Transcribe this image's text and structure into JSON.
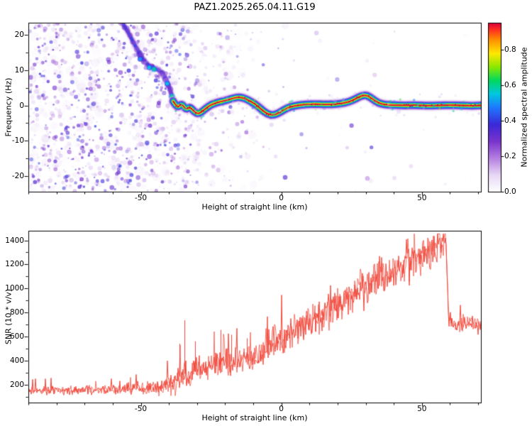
{
  "figure": {
    "background": "#ffffff",
    "frame_color": "#000000",
    "title": "PAZ1.2025.265.04.11.G19"
  },
  "chart_data": [
    {
      "type": "heatmap",
      "title": "PAZ1.2025.265.04.11.G19",
      "xlabel": "Height of straight line (km)",
      "ylabel": "Frequency (Hz)",
      "xlim": [
        -90,
        71
      ],
      "ylim": [
        -24.5,
        23.5
      ],
      "xticks": [
        {
          "v": -50,
          "label": "-50"
        },
        {
          "v": 0,
          "label": "0"
        },
        {
          "v": 50,
          "label": "50"
        }
      ],
      "x_minor_step": 10,
      "yticks": [
        {
          "v": 20,
          "label": "20"
        },
        {
          "v": 10,
          "label": "10"
        },
        {
          "v": 0,
          "label": "0"
        },
        {
          "v": -10,
          "label": "-10"
        },
        {
          "v": -20,
          "label": "-20"
        }
      ],
      "y_minor_step": 5,
      "colorbar": {
        "label": "Normalized spectral amplitude",
        "range": [
          0,
          0.95
        ],
        "ticks": [
          {
            "v": 0,
            "label": "0.0"
          },
          {
            "v": 0.2,
            "label": "0.2"
          },
          {
            "v": 0.4,
            "label": "0.4"
          },
          {
            "v": 0.6,
            "label": "0.6"
          },
          {
            "v": 0.8,
            "label": "0.8"
          }
        ],
        "colormap": [
          {
            "t": 0.0,
            "color": "#ffffff"
          },
          {
            "t": 0.1,
            "color": "#e8d8f5"
          },
          {
            "t": 0.2,
            "color": "#b57fe0"
          },
          {
            "t": 0.3,
            "color": "#7a33cc"
          },
          {
            "t": 0.4,
            "color": "#3b28d8"
          },
          {
            "t": 0.5,
            "color": "#1f78ff"
          },
          {
            "t": 0.58,
            "color": "#00c8e0"
          },
          {
            "t": 0.66,
            "color": "#00d860"
          },
          {
            "t": 0.74,
            "color": "#8ae800"
          },
          {
            "t": 0.82,
            "color": "#ffe800"
          },
          {
            "t": 0.9,
            "color": "#ff9000"
          },
          {
            "t": 0.96,
            "color": "#ff3020"
          },
          {
            "t": 1.0,
            "color": "#d8003c"
          }
        ]
      },
      "signal_ridge": {
        "core_amplitude": 0.95,
        "x": [
          -38.5,
          -37,
          -35.5,
          -34,
          -32.5,
          -31,
          -29.5,
          -28,
          -26.5,
          -25,
          -23,
          -21,
          -19,
          -17,
          -15,
          -13,
          -11,
          -9,
          -7,
          -5,
          -3,
          -1,
          1,
          3,
          6,
          9,
          12,
          15,
          18,
          21,
          24,
          26.5,
          28.5,
          30.5,
          32.5,
          34.5,
          37,
          40,
          44,
          48,
          52,
          56,
          60,
          64,
          68,
          71
        ],
        "frequency_hz": [
          1.2,
          -0.8,
          0.6,
          -1.2,
          -0.4,
          -1.8,
          -2.4,
          -1.6,
          -0.6,
          0.2,
          0.8,
          1.2,
          1.6,
          2.1,
          2.4,
          2.0,
          1.2,
          0.2,
          -1.2,
          -2.4,
          -2.8,
          -2.2,
          -1.2,
          -0.4,
          0.1,
          0.3,
          0.4,
          0.3,
          0.3,
          0.5,
          1.0,
          1.9,
          2.8,
          2.9,
          1.8,
          0.7,
          0.2,
          0.1,
          0.0,
          0.1,
          -0.1,
          0.0,
          0.1,
          0.0,
          -0.1,
          0.0
        ]
      },
      "descent_track": {
        "amplitude": 0.4,
        "x": [
          -57,
          -55,
          -53,
          -51,
          -49.5,
          -48,
          -46.5,
          -45,
          -43.5,
          -42,
          -41,
          -40,
          -39.2,
          -38.6
        ],
        "frequency_hz": [
          24,
          21.5,
          18.5,
          15.5,
          13.5,
          12,
          11,
          10.5,
          10,
          9,
          7.5,
          5.5,
          3.5,
          2
        ],
        "bright_spots": [
          {
            "x": -50.2,
            "f": 13.2,
            "v": 0.5
          },
          {
            "x": -47.0,
            "f": 10.8,
            "v": 0.55
          },
          {
            "x": -45.3,
            "f": 10.3,
            "v": 0.6
          },
          {
            "x": -40.6,
            "f": 6.2,
            "v": 0.55
          },
          {
            "x": -38.9,
            "f": 2.6,
            "v": 0.6
          }
        ]
      },
      "noise_field": {
        "seed": 1234,
        "extent_x": [
          -90,
          0
        ],
        "amplitude_range": [
          0.05,
          0.4
        ],
        "description": "low-amplitude purple speckle, dense left of -40 km, fading toward 0 km"
      }
    },
    {
      "type": "line",
      "series_name": "SNR",
      "color": "#f0493c",
      "xlabel": "Height of straight line (km)",
      "ylabel": "SNR (10 * v/v)",
      "xlim": [
        -90,
        71
      ],
      "ylim": [
        50,
        1480
      ],
      "xticks": [
        {
          "v": -50,
          "label": "-50"
        },
        {
          "v": 0,
          "label": "0"
        },
        {
          "v": 50,
          "label": "50"
        }
      ],
      "x_minor_step": 10,
      "yticks": [
        {
          "v": 200,
          "label": "200"
        },
        {
          "v": 400,
          "label": "400"
        },
        {
          "v": 600,
          "label": "600"
        },
        {
          "v": 800,
          "label": "800"
        },
        {
          "v": 1000,
          "label": "1000"
        },
        {
          "v": 1200,
          "label": "1200"
        },
        {
          "v": 1400,
          "label": "1400"
        }
      ],
      "y_minor_step": 100,
      "seed": 77,
      "envelope": {
        "x": [
          -90,
          -82,
          -74,
          -66,
          -58,
          -50,
          -45,
          -41,
          -38,
          -35,
          -33,
          -30,
          -28,
          -25,
          -22,
          -19,
          -16,
          -13,
          -10,
          -7,
          -4,
          -1,
          2,
          5,
          8,
          12,
          16,
          20,
          25,
          30,
          35,
          40,
          45,
          50,
          54,
          57,
          58.5,
          59.5,
          61,
          64,
          67,
          71
        ],
        "mean": [
          150,
          152,
          148,
          155,
          160,
          168,
          175,
          185,
          215,
          300,
          240,
          330,
          310,
          380,
          360,
          400,
          380,
          420,
          400,
          470,
          520,
          570,
          620,
          650,
          690,
          740,
          800,
          870,
          950,
          1020,
          1090,
          1150,
          1210,
          1270,
          1320,
          1360,
          1380,
          760,
          700,
          705,
          715,
          700
        ],
        "noise_amp": [
          45,
          48,
          45,
          50,
          52,
          60,
          70,
          90,
          120,
          160,
          120,
          140,
          130,
          150,
          150,
          160,
          150,
          160,
          150,
          160,
          170,
          170,
          170,
          170,
          175,
          180,
          185,
          190,
          195,
          200,
          205,
          205,
          210,
          215,
          218,
          220,
          220,
          110,
          90,
          90,
          95,
          90
        ]
      },
      "spikes": [
        {
          "x": -36.2,
          "value": 540
        },
        {
          "x": -34.6,
          "value": 735
        },
        {
          "x": -30.8,
          "value": 560
        },
        {
          "x": -21.5,
          "value": 655
        },
        {
          "x": -17.8,
          "value": 615
        },
        {
          "x": -12.4,
          "value": 585
        }
      ]
    }
  ]
}
